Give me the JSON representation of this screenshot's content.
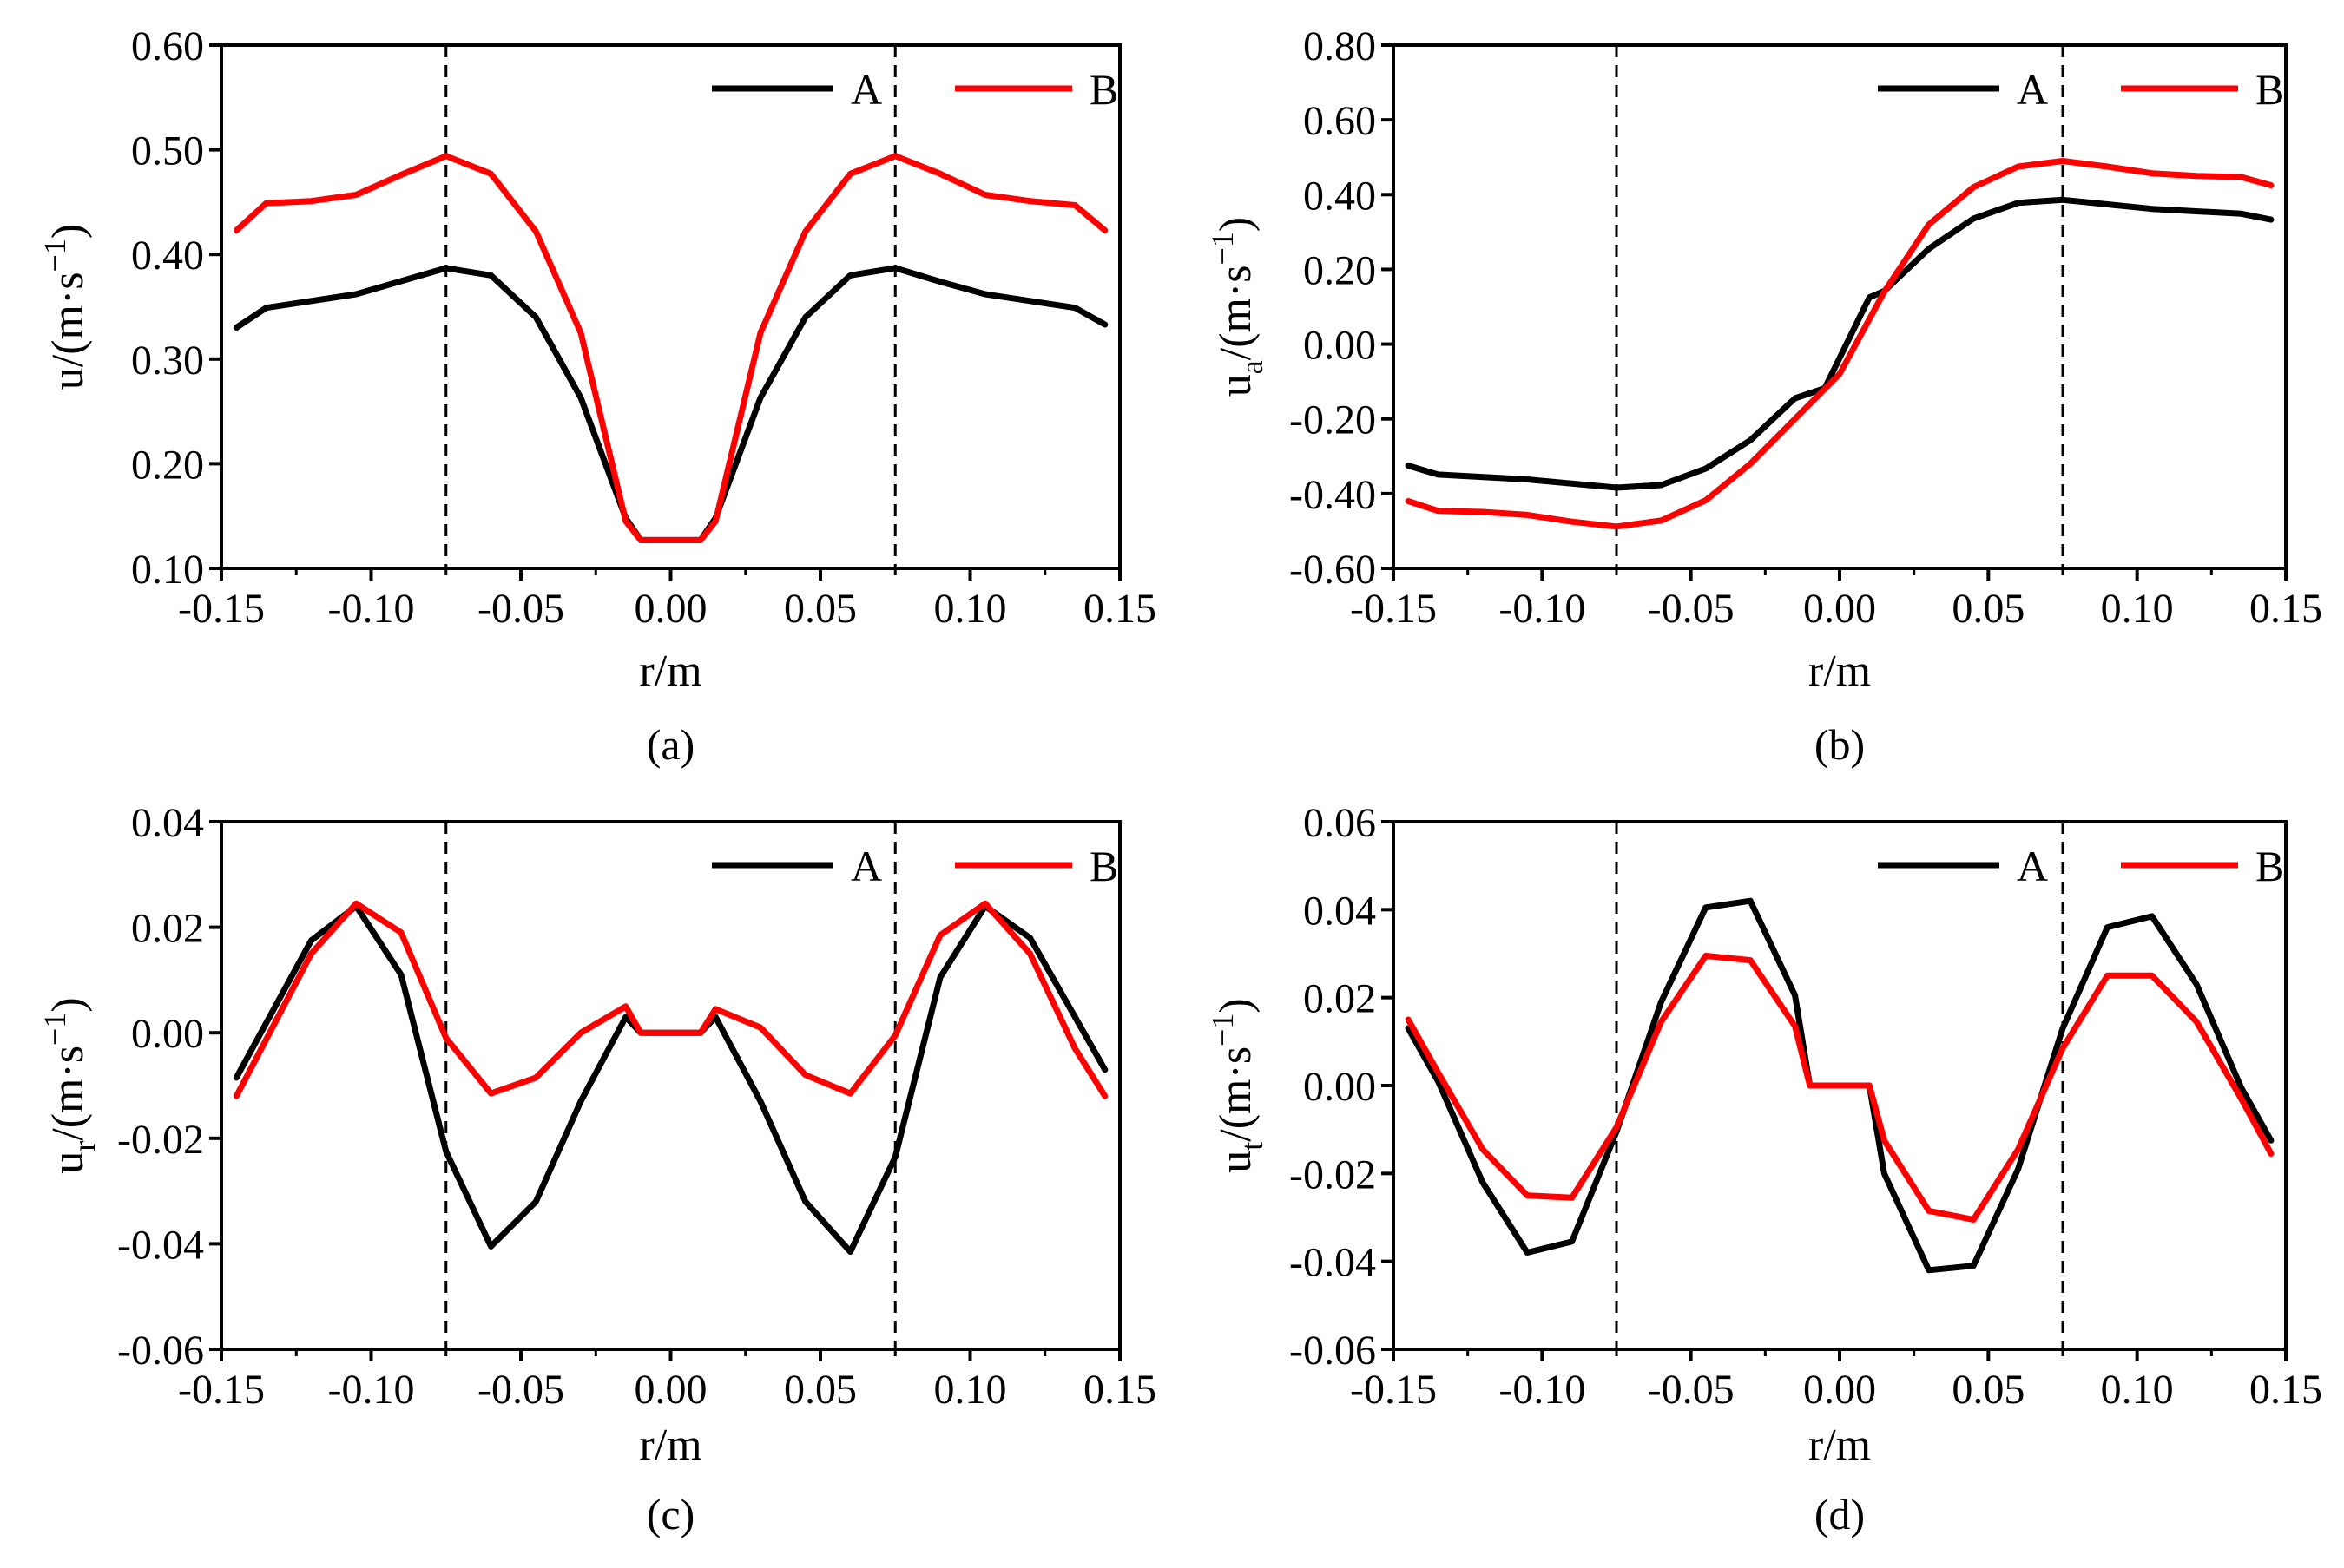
{
  "chart_data": [
    {
      "type": "line",
      "caption": "(a)",
      "xlabel": "r/m",
      "ylabel": {
        "base": "u",
        "sub": "",
        "unit": "/(m·s",
        "exp": "−1",
        "close": ")"
      },
      "xlim": [
        -0.15,
        0.15
      ],
      "ylim": [
        0.1,
        0.6
      ],
      "xticks": [
        -0.15,
        -0.1,
        -0.05,
        0.0,
        0.05,
        0.1,
        0.15
      ],
      "xtick_labels": [
        "-0.15",
        "-0.10",
        "-0.05",
        "0.00",
        "0.05",
        "0.10",
        "0.15"
      ],
      "yticks": [
        0.1,
        0.2,
        0.3,
        0.4,
        0.5,
        0.6
      ],
      "ytick_labels": [
        "0.10",
        "0.20",
        "0.30",
        "0.40",
        "0.50",
        "0.60"
      ],
      "vlines": [
        -0.075,
        0.075
      ],
      "legend": "top-right",
      "series": [
        {
          "name": "A",
          "color": "#000000",
          "x": [
            -0.145,
            -0.135,
            -0.105,
            -0.075,
            -0.06,
            -0.045,
            -0.03,
            -0.015,
            -0.01,
            0.0,
            0.01,
            0.015,
            0.03,
            0.045,
            0.06,
            0.075,
            0.09,
            0.105,
            0.135,
            0.145
          ],
          "y": [
            0.33,
            0.349,
            0.362,
            0.387,
            0.38,
            0.34,
            0.263,
            0.148,
            0.127,
            0.127,
            0.127,
            0.148,
            0.263,
            0.34,
            0.38,
            0.387,
            0.374,
            0.362,
            0.349,
            0.333
          ]
        },
        {
          "name": "B",
          "color": "#ff0000",
          "x": [
            -0.145,
            -0.135,
            -0.12,
            -0.105,
            -0.09,
            -0.075,
            -0.06,
            -0.045,
            -0.03,
            -0.015,
            -0.01,
            0.0,
            0.01,
            0.015,
            0.03,
            0.045,
            0.06,
            0.075,
            0.09,
            0.105,
            0.12,
            0.135,
            0.145
          ],
          "y": [
            0.423,
            0.449,
            0.451,
            0.457,
            0.476,
            0.494,
            0.477,
            0.422,
            0.325,
            0.145,
            0.127,
            0.127,
            0.127,
            0.145,
            0.325,
            0.422,
            0.477,
            0.494,
            0.477,
            0.457,
            0.451,
            0.447,
            0.423
          ]
        }
      ]
    },
    {
      "type": "line",
      "caption": "(b)",
      "xlabel": "r/m",
      "ylabel": {
        "base": "u",
        "sub": "a",
        "unit": "/(m·s",
        "exp": "−1",
        "close": ")"
      },
      "xlim": [
        -0.15,
        0.15
      ],
      "ylim": [
        -0.6,
        0.8
      ],
      "xticks": [
        -0.15,
        -0.1,
        -0.05,
        0.0,
        0.05,
        0.1,
        0.15
      ],
      "xtick_labels": [
        "-0.15",
        "-0.10",
        "-0.05",
        "0.00",
        "0.05",
        "0.10",
        "0.15"
      ],
      "yticks": [
        -0.6,
        -0.4,
        -0.2,
        0.0,
        0.2,
        0.4,
        0.6,
        0.8
      ],
      "ytick_labels": [
        "-0.60",
        "-0.40",
        "-0.20",
        "0.00",
        "0.20",
        "0.40",
        "0.60",
        "0.80"
      ],
      "vlines": [
        -0.075,
        0.075
      ],
      "legend": "top-right",
      "series": [
        {
          "name": "A",
          "color": "#000000",
          "x": [
            -0.145,
            -0.135,
            -0.105,
            -0.075,
            -0.06,
            -0.045,
            -0.03,
            -0.015,
            -0.005,
            0.01,
            0.015,
            0.03,
            0.045,
            0.06,
            0.075,
            0.09,
            0.105,
            0.135,
            0.145
          ],
          "y": [
            -0.325,
            -0.349,
            -0.362,
            -0.384,
            -0.377,
            -0.333,
            -0.257,
            -0.145,
            -0.118,
            0.125,
            0.142,
            0.255,
            0.336,
            0.378,
            0.386,
            0.374,
            0.362,
            0.349,
            0.333
          ]
        },
        {
          "name": "B",
          "color": "#ff0000",
          "x": [
            -0.145,
            -0.135,
            -0.12,
            -0.105,
            -0.09,
            -0.075,
            -0.06,
            -0.045,
            -0.03,
            -0.015,
            0.0,
            0.015,
            0.03,
            0.045,
            0.06,
            0.075,
            0.09,
            0.105,
            0.12,
            0.135,
            0.145
          ],
          "y": [
            -0.42,
            -0.446,
            -0.449,
            -0.457,
            -0.475,
            -0.488,
            -0.472,
            -0.418,
            -0.32,
            -0.2,
            -0.08,
            0.14,
            0.32,
            0.42,
            0.475,
            0.49,
            0.475,
            0.457,
            0.45,
            0.447,
            0.425
          ]
        }
      ]
    },
    {
      "type": "line",
      "caption": "(c)",
      "xlabel": "r/m",
      "ylabel": {
        "base": "u",
        "sub": "r",
        "unit": "/(m·s",
        "exp": "−1",
        "close": ")"
      },
      "xlim": [
        -0.15,
        0.15
      ],
      "ylim": [
        -0.06,
        0.04
      ],
      "xticks": [
        -0.15,
        -0.1,
        -0.05,
        0.0,
        0.05,
        0.1,
        0.15
      ],
      "xtick_labels": [
        "-0.15",
        "-0.10",
        "-0.05",
        "0.00",
        "0.05",
        "0.10",
        "0.15"
      ],
      "yticks": [
        -0.06,
        -0.04,
        -0.02,
        0.0,
        0.02,
        0.04
      ],
      "ytick_labels": [
        "-0.06",
        "-0.04",
        "-0.02",
        "0.00",
        "0.02",
        "0.04"
      ],
      "vlines": [
        -0.075,
        0.075
      ],
      "legend": "top-right",
      "series": [
        {
          "name": "A",
          "color": "#000000",
          "x": [
            -0.145,
            -0.12,
            -0.105,
            -0.09,
            -0.075,
            -0.06,
            -0.045,
            -0.03,
            -0.015,
            -0.01,
            0.0,
            0.01,
            0.015,
            0.03,
            0.045,
            0.06,
            0.075,
            0.09,
            0.105,
            0.12,
            0.145
          ],
          "y": [
            -0.0085,
            0.0175,
            0.024,
            0.011,
            -0.0225,
            -0.0405,
            -0.032,
            -0.013,
            0.003,
            0.0,
            0.0,
            0.0,
            0.003,
            -0.013,
            -0.032,
            -0.0415,
            -0.0235,
            0.0105,
            0.024,
            0.018,
            -0.007
          ]
        },
        {
          "name": "B",
          "color": "#ff0000",
          "x": [
            -0.145,
            -0.12,
            -0.105,
            -0.09,
            -0.075,
            -0.06,
            -0.045,
            -0.03,
            -0.015,
            -0.01,
            0.0,
            0.01,
            0.015,
            0.03,
            0.045,
            0.06,
            0.075,
            0.09,
            0.105,
            0.12,
            0.135,
            0.145
          ],
          "y": [
            -0.012,
            0.015,
            0.0245,
            0.019,
            -0.001,
            -0.0115,
            -0.0085,
            0.0,
            0.005,
            0.0,
            0.0,
            0.0,
            0.0045,
            0.001,
            -0.008,
            -0.0115,
            -0.0005,
            0.0185,
            0.0245,
            0.015,
            -0.003,
            -0.012
          ]
        }
      ]
    },
    {
      "type": "line",
      "caption": "(d)",
      "xlabel": "r/m",
      "ylabel": {
        "base": "u",
        "sub": "t",
        "unit": "/(m·s",
        "exp": "−1",
        "close": ")"
      },
      "xlim": [
        -0.15,
        0.15
      ],
      "ylim": [
        -0.06,
        0.06
      ],
      "xticks": [
        -0.15,
        -0.1,
        -0.05,
        0.0,
        0.05,
        0.1,
        0.15
      ],
      "xtick_labels": [
        "-0.15",
        "-0.10",
        "-0.05",
        "0.00",
        "0.05",
        "0.10",
        "0.15"
      ],
      "yticks": [
        -0.06,
        -0.04,
        -0.02,
        0.0,
        0.02,
        0.04,
        0.06
      ],
      "ytick_labels": [
        "-0.06",
        "-0.04",
        "-0.02",
        "0.00",
        "0.02",
        "0.04",
        "0.06"
      ],
      "vlines": [
        -0.075,
        0.075
      ],
      "legend": "top-right",
      "series": [
        {
          "name": "A",
          "color": "#000000",
          "x": [
            -0.145,
            -0.135,
            -0.12,
            -0.105,
            -0.09,
            -0.075,
            -0.06,
            -0.045,
            -0.03,
            -0.015,
            -0.01,
            0.0,
            0.01,
            0.015,
            0.03,
            0.045,
            0.06,
            0.075,
            0.09,
            0.105,
            0.12,
            0.135,
            0.145
          ],
          "y": [
            0.013,
            0.001,
            -0.022,
            -0.038,
            -0.0355,
            -0.0105,
            0.019,
            0.0405,
            0.042,
            0.0205,
            0.0,
            0.0,
            0.0,
            -0.02,
            -0.042,
            -0.041,
            -0.019,
            0.013,
            0.036,
            0.0385,
            0.023,
            -0.0005,
            -0.0125
          ]
        },
        {
          "name": "B",
          "color": "#ff0000",
          "x": [
            -0.145,
            -0.135,
            -0.12,
            -0.105,
            -0.09,
            -0.075,
            -0.06,
            -0.045,
            -0.03,
            -0.015,
            -0.01,
            0.0,
            0.01,
            0.015,
            0.03,
            0.045,
            0.06,
            0.075,
            0.09,
            0.105,
            0.12,
            0.135,
            0.145
          ],
          "y": [
            0.015,
            0.003,
            -0.0145,
            -0.025,
            -0.0255,
            -0.0095,
            0.0145,
            0.0295,
            0.0285,
            0.0135,
            0.0,
            0.0,
            0.0,
            -0.0125,
            -0.0285,
            -0.0305,
            -0.0145,
            0.0085,
            0.025,
            0.025,
            0.0145,
            -0.003,
            -0.0155
          ]
        }
      ]
    }
  ]
}
